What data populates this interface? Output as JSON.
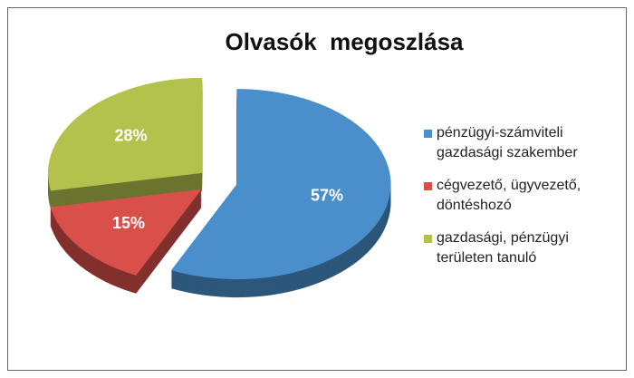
{
  "chart_data": {
    "type": "pie",
    "title": "Olvasók  megoszlása",
    "categories": [
      "pénzügyi-számviteli gazdasági szakember",
      "cégvezető, ügyvezető, döntéshozó",
      "gazdasági, pénzügyi területen tanuló"
    ],
    "values": [
      57,
      15,
      28
    ],
    "value_labels": [
      "57%",
      "15%",
      "28%"
    ],
    "colors": [
      "#4a8fcb",
      "#d9504b",
      "#b3c24c"
    ],
    "legend": "right"
  }
}
